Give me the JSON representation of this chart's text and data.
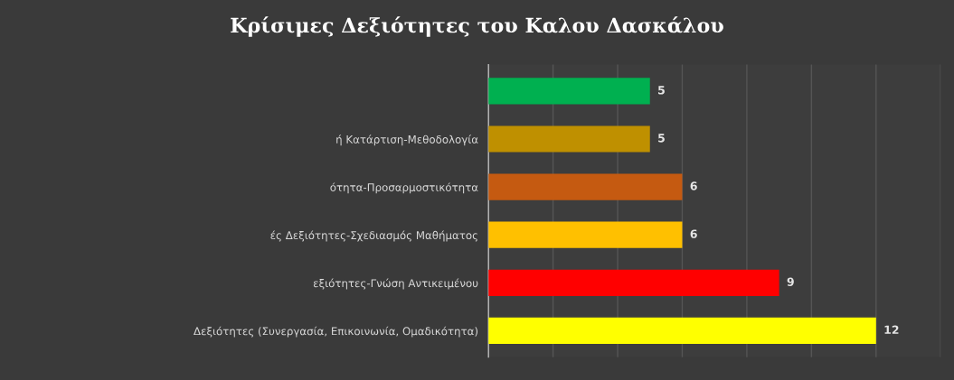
{
  "chart_data": {
    "type": "bar",
    "orientation": "horizontal",
    "title": "Κρίσιμες Δεξιότητες του Καλου Δασκάλου",
    "categories": [
      null,
      "ή Κατάρτιση-Μεθοδολογία",
      "ότητα-Προσαρμοστικότητα",
      "ές Δεξιότητες-Σχεδιασμός Μαθήματος",
      "εξιότητες-Γνώση Αντικειμένου",
      "Δεξιότητες (Συνεργασία, Επικοινωνία, Ομαδικότητα)"
    ],
    "values": [
      5,
      5,
      6,
      6,
      9,
      12
    ],
    "colors": [
      "#00b050",
      "#bf9000",
      "#c55a11",
      "#ffc000",
      "#ff0000",
      "#ffff00"
    ],
    "xlim": [
      0,
      14
    ],
    "xticks": [
      {
        "value": 0,
        "label": null
      },
      {
        "value": 2,
        "label": null
      },
      {
        "value": 4,
        "label": null
      },
      {
        "value": 6,
        "label": null
      },
      {
        "value": 8,
        "label": null
      },
      {
        "value": 10,
        "label": null
      },
      {
        "value": 12,
        "label": null
      },
      {
        "value": 14,
        "label": null
      }
    ],
    "tick_labels": "y",
    "grid": "x",
    "data_labels": true
  }
}
